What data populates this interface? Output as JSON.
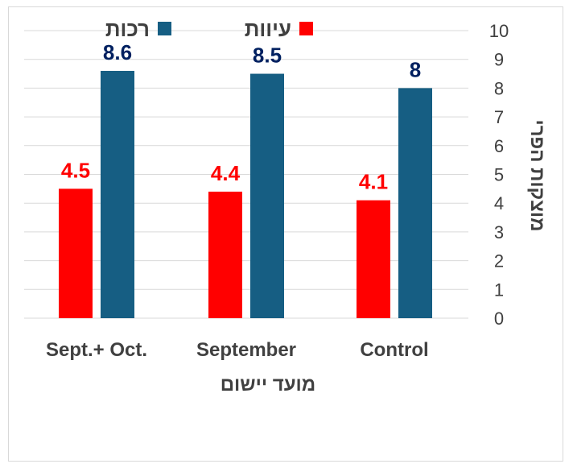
{
  "chart_data": {
    "type": "bar",
    "categories": [
      "Sept.+ Oct.",
      "September",
      "Control"
    ],
    "series": [
      {
        "name": "עיוות",
        "values": [
          4.5,
          4.4,
          4.1
        ],
        "color": "#ff0000"
      },
      {
        "name": "רכות",
        "values": [
          8.6,
          8.5,
          8
        ],
        "color": "#165e83"
      }
    ],
    "data_labels": [
      [
        "4.5",
        "4.4",
        "4.1"
      ],
      [
        "8.6",
        "8.5",
        "8"
      ]
    ],
    "label_colors": [
      "#ff0000",
      "#002060"
    ],
    "title": "",
    "xlabel": "מועד יישום",
    "ylabel": "מוצקות הפרי",
    "ylim": [
      0,
      10
    ],
    "yticks": [
      0,
      1,
      2,
      3,
      4,
      5,
      6,
      7,
      8,
      9,
      10
    ],
    "ytick_labels": [
      "0",
      "1",
      "2",
      "3",
      "4",
      "5",
      "6",
      "7",
      "8",
      "9",
      "10"
    ],
    "y_axis_side": "right",
    "legend": "top",
    "grid": true,
    "gridline_color": "#d9d9d9"
  }
}
